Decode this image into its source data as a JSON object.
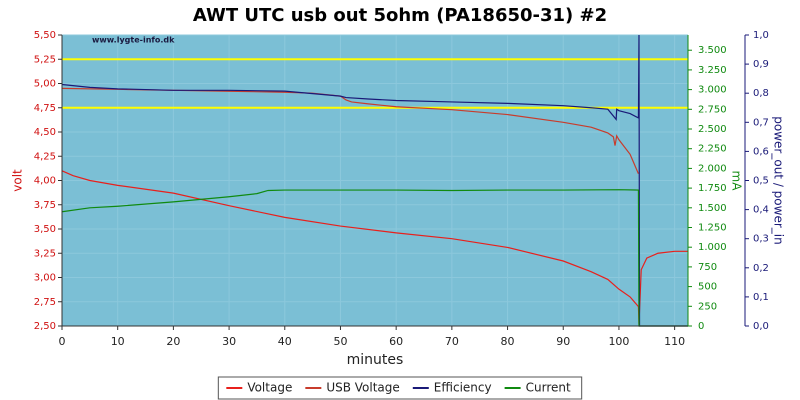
{
  "chart_data": {
    "type": "line",
    "title": "AWT UTC usb out 5ohm (PA18650-31) #2",
    "watermark": "www.lygte-info.dk",
    "xlabel": "minutes",
    "ylabel": "volt",
    "y2label": "mA",
    "y3label": "power_out / power_in",
    "xlim": [
      0,
      112.4
    ],
    "xticks": [
      0,
      10,
      20,
      30,
      40,
      50,
      60,
      70,
      80,
      90,
      100,
      110
    ],
    "ylim": [
      2.5,
      5.5
    ],
    "yticks": [
      {
        "value": 2.5,
        "label": "2,50"
      },
      {
        "value": 2.75,
        "label": "2,75"
      },
      {
        "value": 3.0,
        "label": "3,00"
      },
      {
        "value": 3.25,
        "label": "3,25"
      },
      {
        "value": 3.5,
        "label": "3,50"
      },
      {
        "value": 3.75,
        "label": "3,75"
      },
      {
        "value": 4.0,
        "label": "4,00"
      },
      {
        "value": 4.25,
        "label": "4,25"
      },
      {
        "value": 4.5,
        "label": "4,50"
      },
      {
        "value": 4.75,
        "label": "4,75"
      },
      {
        "value": 5.0,
        "label": "5,00"
      },
      {
        "value": 5.25,
        "label": "5,25"
      },
      {
        "value": 5.5,
        "label": "5,50"
      }
    ],
    "y2lim": [
      0,
      3693
    ],
    "y2ticks": [
      0,
      250,
      500,
      750,
      {
        "value": 1000,
        "label": "1.000"
      },
      {
        "value": 1250,
        "label": "1.250"
      },
      {
        "value": 1500,
        "label": "1.500"
      },
      {
        "value": 1750,
        "label": "1.750"
      },
      {
        "value": 2000,
        "label": "2.000"
      },
      {
        "value": 2250,
        "label": "2.250"
      },
      {
        "value": 2500,
        "label": "2.500"
      },
      {
        "value": 2750,
        "label": "2.750"
      },
      {
        "value": 3000,
        "label": "3.000"
      },
      {
        "value": 3250,
        "label": "3.250"
      },
      {
        "value": 3500,
        "label": "3.500"
      }
    ],
    "y3lim": [
      0,
      1
    ],
    "y3ticks": [
      {
        "value": 0,
        "label": "0,0"
      },
      {
        "value": 0.1,
        "label": "0,1"
      },
      {
        "value": 0.2,
        "label": "0,2"
      },
      {
        "value": 0.3,
        "label": "0,3"
      },
      {
        "value": 0.4,
        "label": "0,4"
      },
      {
        "value": 0.5,
        "label": "0,5"
      },
      {
        "value": 0.6,
        "label": "0,6"
      },
      {
        "value": 0.7,
        "label": "0,7"
      },
      {
        "value": 0.8,
        "label": "0,8"
      },
      {
        "value": 0.9,
        "label": "0,9"
      },
      {
        "value": 1.0,
        "label": "1,0"
      }
    ],
    "grid": true,
    "reference_lines": {
      "values": [
        4.75,
        5.25
      ],
      "color": "#ffff00"
    },
    "series": [
      {
        "name": "Voltage",
        "color": "#e8201c",
        "axis": "y",
        "x": [
          0,
          2,
          5,
          10,
          20,
          30,
          40,
          50,
          60,
          70,
          80,
          90,
          95,
          98,
          100,
          102,
          103.5,
          103.6,
          104,
          105,
          107,
          110,
          112.4
        ],
        "values": [
          4.1,
          4.05,
          4.0,
          3.95,
          3.87,
          3.74,
          3.62,
          3.53,
          3.46,
          3.4,
          3.31,
          3.17,
          3.06,
          2.98,
          2.88,
          2.8,
          2.7,
          2.52,
          3.08,
          3.2,
          3.25,
          3.27,
          3.27
        ]
      },
      {
        "name": "USB Voltage",
        "color": "#c83c2c",
        "axis": "y",
        "x": [
          0,
          10,
          20,
          30,
          40,
          45,
          50,
          51,
          52,
          55,
          60,
          70,
          80,
          90,
          95,
          98,
          99,
          99.3,
          99.6,
          100,
          102,
          103.5
        ],
        "values": [
          4.95,
          4.94,
          4.93,
          4.92,
          4.91,
          4.9,
          4.87,
          4.83,
          4.81,
          4.79,
          4.76,
          4.73,
          4.68,
          4.6,
          4.55,
          4.49,
          4.45,
          4.36,
          4.46,
          4.42,
          4.27,
          4.07
        ]
      },
      {
        "name": "Efficiency",
        "color": "#1a1a78",
        "axis": "y3",
        "x": [
          0,
          5,
          10,
          20,
          30,
          40,
          50,
          51,
          55,
          60,
          70,
          80,
          90,
          95,
          98,
          99.5,
          99.6,
          100,
          102,
          103.5,
          103.6,
          103.7,
          112.4
        ],
        "values": [
          0.83,
          0.82,
          0.815,
          0.81,
          0.81,
          0.807,
          0.79,
          0.785,
          0.78,
          0.775,
          0.77,
          0.765,
          0.757,
          0.75,
          0.745,
          0.71,
          0.745,
          0.74,
          0.73,
          0.715,
          1.0,
          0,
          0
        ]
      },
      {
        "name": "Current",
        "color": "#108a10",
        "axis": "y2",
        "x": [
          0,
          5,
          10,
          20,
          30,
          35,
          37,
          40,
          60,
          70,
          80,
          90,
          100,
          103.5,
          103.6,
          112.4
        ],
        "values": [
          1450,
          1500,
          1520,
          1575,
          1640,
          1680,
          1720,
          1725,
          1725,
          1720,
          1725,
          1725,
          1730,
          1725,
          0,
          0
        ]
      }
    ]
  }
}
